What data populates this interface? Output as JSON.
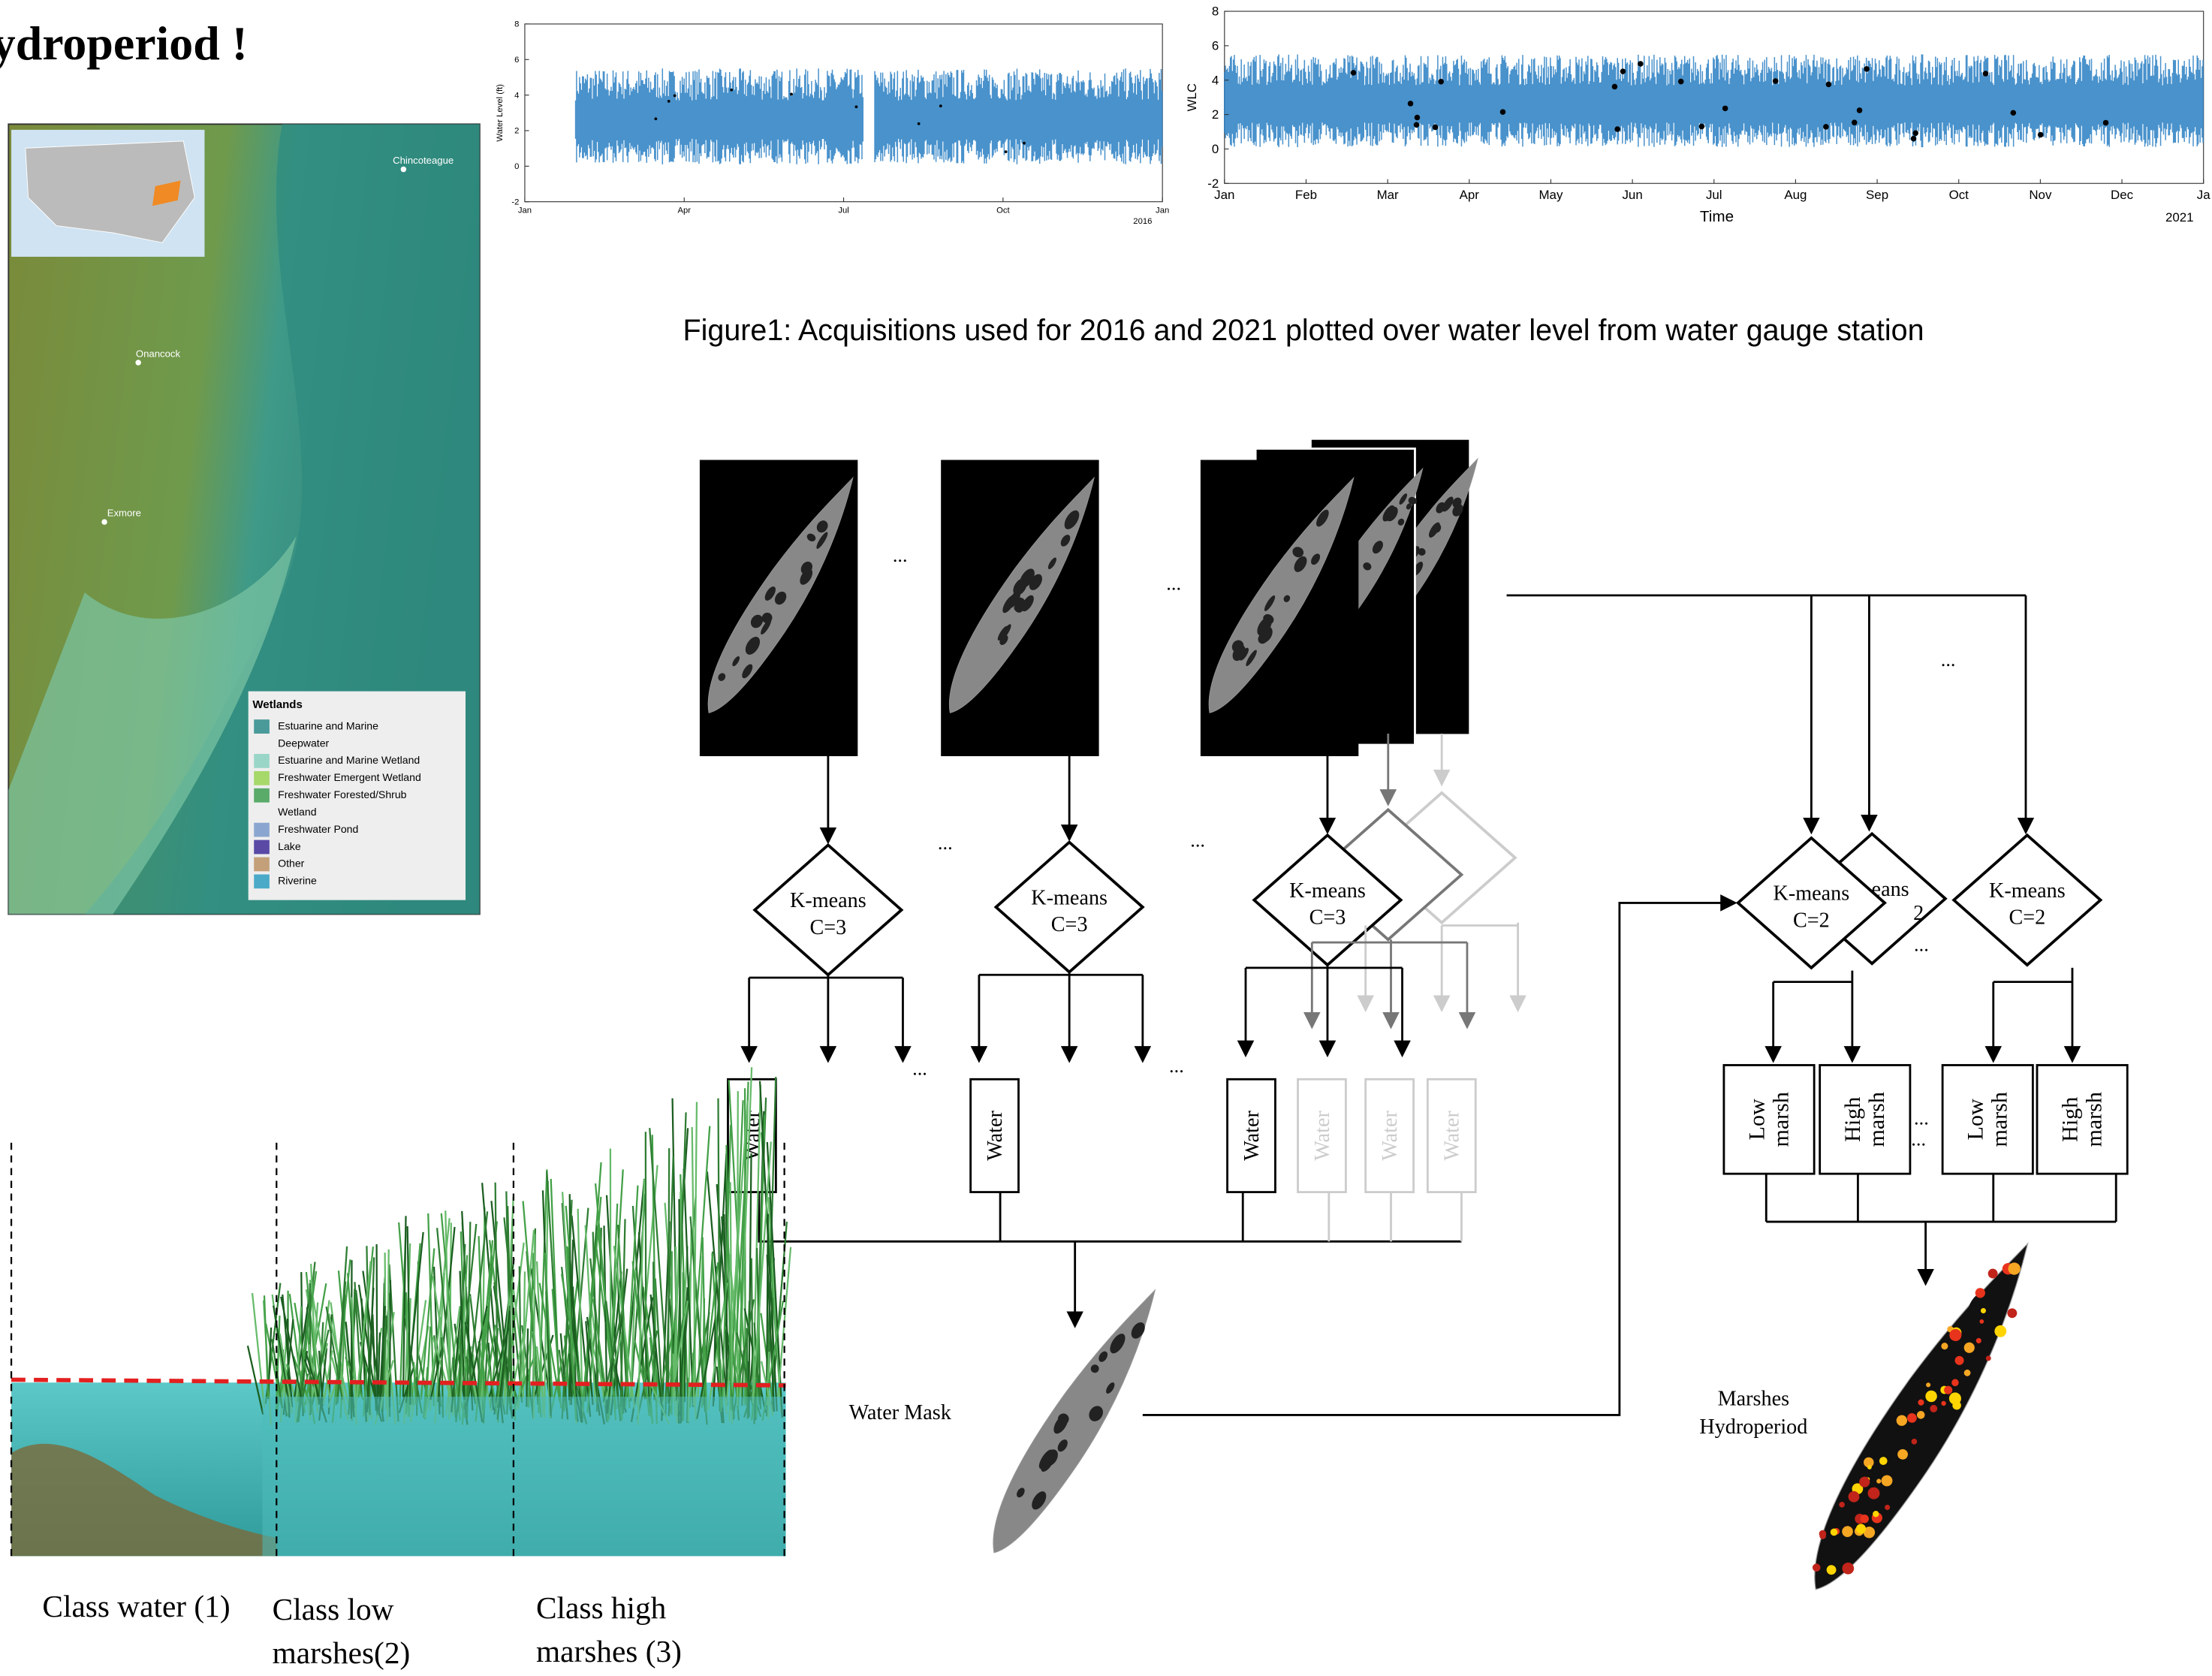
{
  "title": "ydroperiod !",
  "map": {
    "places": [
      "Chincoteague",
      "Onancock",
      "Exmore"
    ],
    "legend_title": "Wetlands",
    "legend_items": [
      "Estuarine and Marine",
      "Deepwater",
      "Estuarine and Marine Wetland",
      "Freshwater Emergent Wetland",
      "Freshwater Forested/Shrub",
      "Wetland",
      "Freshwater Pond",
      "Lake",
      "Other",
      "Riverine"
    ]
  },
  "plots": [
    {
      "ylabel": "Water Level (ft)",
      "yticks": [
        -2,
        0,
        2,
        4,
        6,
        8
      ],
      "xticks": [
        "Jan",
        "Apr",
        "Jul",
        "Oct",
        "Jan"
      ],
      "year": "2016"
    },
    {
      "ylabel": "WLC",
      "yticks": [
        -2,
        0,
        2,
        4,
        6,
        8
      ],
      "xticks": [
        "Jan",
        "Feb",
        "Mar",
        "Apr",
        "May",
        "Jun",
        "Jul",
        "Aug",
        "Sep",
        "Oct",
        "Nov",
        "Dec",
        "Ja"
      ],
      "xlabel": "Time",
      "year": "2021"
    }
  ],
  "caption": "Figure1: Acquisitions used for 2016 and 2021 plotted over water level from water gauge station",
  "ellipsis": "...",
  "kmeans3": {
    "name": "K-means",
    "param": "C=3"
  },
  "kmeans2": {
    "name": "K-means",
    "param": "C=2",
    "partial_name": "eans",
    "partial_param": "2"
  },
  "water": "Water",
  "low_marsh": [
    "Low",
    "marsh"
  ],
  "high_marsh": [
    "High",
    "marsh"
  ],
  "water_mask": "Water Mask",
  "hydroperiod": [
    "Marshes",
    "Hydroperiod"
  ],
  "classes": [
    [
      "Class water (1)"
    ],
    [
      "Class low",
      "marshes(2)"
    ],
    [
      "Class high",
      "marshes (3)"
    ]
  ]
}
